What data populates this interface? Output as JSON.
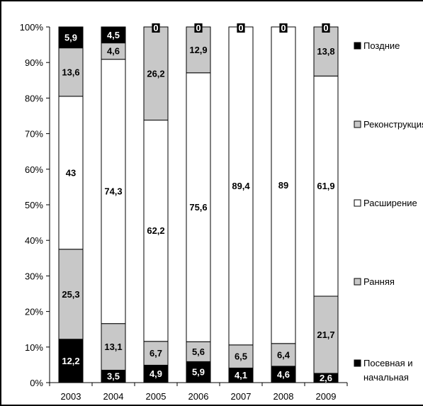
{
  "chart_data": {
    "type": "bar",
    "stacked": true,
    "normalized": true,
    "categories": [
      "2003",
      "2004",
      "2005",
      "2006",
      "2007",
      "2008",
      "2009"
    ],
    "y_ticks": [
      "0%",
      "10%",
      "20%",
      "30%",
      "40%",
      "50%",
      "60%",
      "70%",
      "80%",
      "90%",
      "100%"
    ],
    "ylim": [
      0,
      100
    ],
    "grid": false,
    "legend_position": "right",
    "series": [
      {
        "name": "Посевная и начальная",
        "color": "#000000",
        "values": [
          12.2,
          3.5,
          4.9,
          5.9,
          4.1,
          4.6,
          2.6
        ],
        "labels": [
          "12,2",
          "3,5",
          "4,9",
          "5,9",
          "4,1",
          "4,6",
          "2,6"
        ]
      },
      {
        "name": "Ранняя",
        "color": "#c8c8c8",
        "values": [
          25.3,
          13.1,
          6.7,
          5.6,
          6.5,
          6.4,
          21.7
        ],
        "labels": [
          "25,3",
          "13,1",
          "6,7",
          "5,6",
          "6,5",
          "6,4",
          "21,7"
        ]
      },
      {
        "name": "Расширение",
        "color": "#ffffff",
        "values": [
          43,
          74.3,
          62.2,
          75.6,
          89.4,
          89,
          61.9
        ],
        "labels": [
          "43",
          "74,3",
          "62,2",
          "75,6",
          "89,4",
          "89",
          "61,9"
        ]
      },
      {
        "name": "Реконструкция",
        "color": "#c8c8c8",
        "values": [
          13.6,
          4.6,
          26.2,
          12.9,
          0,
          0,
          13.8
        ],
        "labels": [
          "13,6",
          "4,6",
          "26,2",
          "12,9",
          "0",
          "0",
          "13,8"
        ]
      },
      {
        "name": "Поздние",
        "color": "#000000",
        "values": [
          5.9,
          4.5,
          0,
          0,
          0,
          0,
          0
        ],
        "labels": [
          "5,9",
          "4,5",
          "0",
          "0",
          "0",
          "0",
          "0"
        ]
      }
    ],
    "legend": [
      {
        "text": "Поздние",
        "color": "#000000"
      },
      {
        "text": "Реконструкция",
        "color": "#c8c8c8"
      },
      {
        "text": "Расширение",
        "color": "#ffffff"
      },
      {
        "text": "Ранняя",
        "color": "#c8c8c8"
      },
      {
        "text": "Посевная и начальная",
        "color": "#000000"
      }
    ]
  }
}
